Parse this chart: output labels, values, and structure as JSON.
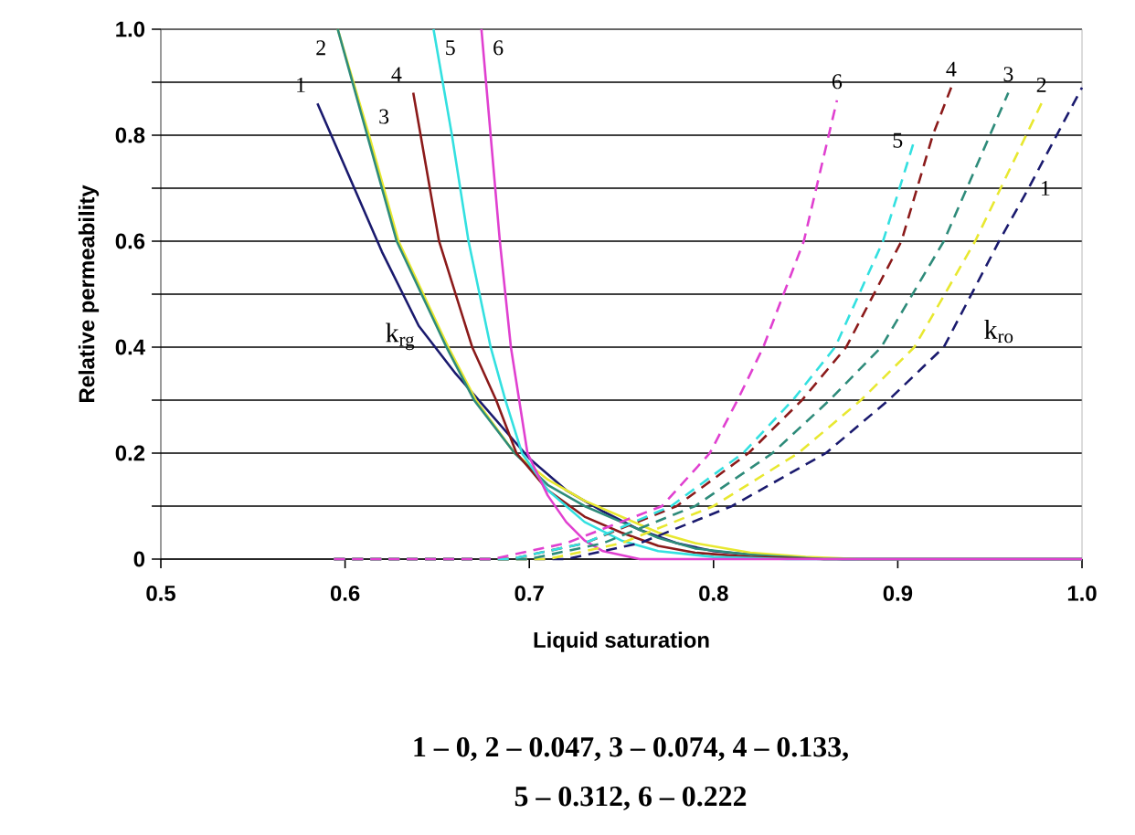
{
  "chart_data": {
    "type": "line",
    "xlabel": "Liquid saturation",
    "ylabel": "Relative permeability",
    "xlim": [
      0.5,
      1.0
    ],
    "xticks": [
      0.5,
      0.6,
      0.7,
      0.8,
      0.9,
      {
        "value": 1.0,
        "label": "1.0"
      }
    ],
    "ylim": [
      0,
      1.0
    ],
    "yticks": [
      0,
      {
        "value": 0.1,
        "label": null
      },
      0.2,
      {
        "value": 0.3,
        "label": null
      },
      0.4,
      {
        "value": 0.5,
        "label": null
      },
      0.6,
      {
        "value": 0.7,
        "label": null
      },
      0.8,
      {
        "value": 0.9,
        "label": null
      },
      {
        "value": 1.0,
        "label": "1.0"
      }
    ],
    "grid": "y",
    "marker": "none",
    "series": [
      {
        "name": "1",
        "color": "#1a1a6e",
        "line_style": "solid",
        "x": [
          0.585,
          0.6,
          0.62,
          0.64,
          0.66,
          0.68,
          0.7,
          0.72,
          0.74,
          0.76,
          0.78,
          0.8,
          0.83,
          0.87,
          1.0
        ],
        "values": [
          0.86,
          0.74,
          0.58,
          0.44,
          0.35,
          0.27,
          0.19,
          0.13,
          0.09,
          0.055,
          0.03,
          0.015,
          0.005,
          0,
          0
        ]
      },
      {
        "name": "2",
        "color": "#e8e830",
        "line_style": "solid",
        "x": [
          0.596,
          0.613,
          0.629,
          0.656,
          0.671,
          0.692,
          0.71,
          0.73,
          0.75,
          0.77,
          0.79,
          0.82,
          0.85,
          0.88,
          1.0
        ],
        "values": [
          1.0,
          0.8,
          0.6,
          0.4,
          0.3,
          0.2,
          0.15,
          0.11,
          0.08,
          0.05,
          0.03,
          0.012,
          0.004,
          0,
          0
        ]
      },
      {
        "name": "3",
        "color": "#2e8b7a",
        "line_style": "solid",
        "x": [
          0.596,
          0.612,
          0.628,
          0.655,
          0.67,
          0.692,
          0.71,
          0.73,
          0.75,
          0.77,
          0.79,
          0.82,
          0.86,
          1.0
        ],
        "values": [
          1.0,
          0.8,
          0.6,
          0.4,
          0.3,
          0.2,
          0.14,
          0.1,
          0.07,
          0.04,
          0.02,
          0.008,
          0,
          0
        ]
      },
      {
        "name": "4",
        "color": "#8b1a1a",
        "line_style": "solid",
        "x": [
          0.637,
          0.651,
          0.669,
          0.682,
          0.693,
          0.71,
          0.73,
          0.75,
          0.77,
          0.79,
          0.82,
          0.86,
          1.0
        ],
        "values": [
          0.88,
          0.6,
          0.4,
          0.3,
          0.2,
          0.13,
          0.08,
          0.05,
          0.025,
          0.012,
          0.004,
          0,
          0
        ]
      },
      {
        "name": "5",
        "color": "#33e0e0",
        "line_style": "solid",
        "x": [
          0.648,
          0.658,
          0.667,
          0.679,
          0.687,
          0.696,
          0.71,
          0.73,
          0.75,
          0.77,
          0.8,
          0.84,
          1.0
        ],
        "values": [
          1.0,
          0.8,
          0.6,
          0.4,
          0.3,
          0.2,
          0.13,
          0.07,
          0.035,
          0.015,
          0.004,
          0,
          0
        ]
      },
      {
        "name": "6",
        "color": "#e040d0",
        "line_style": "solid",
        "x": [
          0.674,
          0.679,
          0.684,
          0.69,
          0.699,
          0.71,
          0.72,
          0.73,
          0.74,
          0.76,
          0.8,
          1.0
        ],
        "values": [
          1.0,
          0.8,
          0.6,
          0.4,
          0.2,
          0.12,
          0.07,
          0.035,
          0.015,
          0,
          0,
          0
        ]
      },
      {
        "name": "1",
        "color": "#1a1a6e",
        "line_style": "dashed",
        "x": [
          0.59,
          0.72,
          0.76,
          0.81,
          0.861,
          0.895,
          0.925,
          0.955,
          0.971,
          1.0
        ],
        "values": [
          0,
          0,
          0.03,
          0.1,
          0.2,
          0.3,
          0.4,
          0.6,
          0.7,
          0.89
        ]
      },
      {
        "name": "2",
        "color": "#e8e830",
        "line_style": "dashed",
        "x": [
          0.59,
          0.71,
          0.75,
          0.8,
          0.846,
          0.88,
          0.909,
          0.942,
          0.978
        ],
        "values": [
          0,
          0,
          0.03,
          0.1,
          0.2,
          0.3,
          0.4,
          0.6,
          0.86
        ]
      },
      {
        "name": "3",
        "color": "#2e8b7a",
        "line_style": "dashed",
        "x": [
          0.59,
          0.7,
          0.74,
          0.79,
          0.832,
          0.863,
          0.891,
          0.925,
          0.96
        ],
        "values": [
          0,
          0,
          0.03,
          0.1,
          0.2,
          0.3,
          0.4,
          0.6,
          0.88
        ]
      },
      {
        "name": "4",
        "color": "#8b1a1a",
        "line_style": "dashed",
        "x": [
          0.59,
          0.69,
          0.73,
          0.78,
          0.819,
          0.848,
          0.872,
          0.902,
          0.919,
          0.929
        ],
        "values": [
          0,
          0,
          0.03,
          0.1,
          0.2,
          0.3,
          0.4,
          0.6,
          0.8,
          0.89
        ]
      },
      {
        "name": "5",
        "color": "#33e0e0",
        "line_style": "dashed",
        "x": [
          0.59,
          0.69,
          0.73,
          0.777,
          0.816,
          0.843,
          0.866,
          0.892,
          0.909
        ],
        "values": [
          0,
          0,
          0.03,
          0.1,
          0.2,
          0.3,
          0.4,
          0.6,
          0.79
        ]
      },
      {
        "name": "6",
        "color": "#e040d0",
        "line_style": "dashed",
        "x": [
          0.59,
          0.68,
          0.72,
          0.772,
          0.798,
          0.813,
          0.827,
          0.849,
          0.867
        ],
        "values": [
          0,
          0,
          0.03,
          0.1,
          0.2,
          0.3,
          0.4,
          0.6,
          0.866
        ]
      }
    ],
    "annotations": [
      "k$_{rg}$",
      "k$_{ro}$",
      "1 – 0,  2 – 0.047, 3 – 0.074, 4 – 0.133,",
      "5 – 0.312, 6 – 0.222"
    ]
  }
}
